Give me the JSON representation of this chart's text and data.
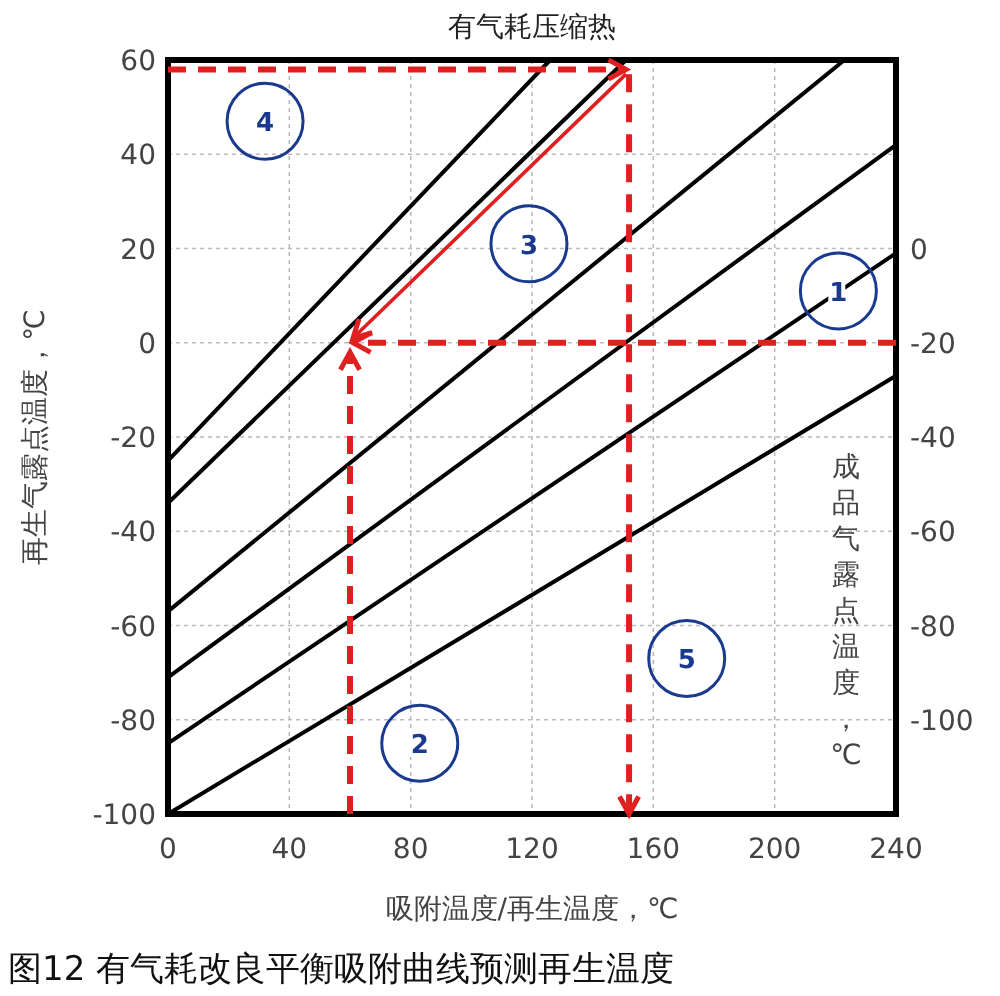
{
  "chart_data": {
    "type": "line",
    "title": "有气耗压缩热",
    "xlabel": "吸附温度/再生温度，℃",
    "ylabel": "再生气露点温度，℃",
    "y2label": "成品气露点温度，℃",
    "xlim": [
      0,
      240
    ],
    "xticks": [
      0,
      40,
      80,
      120,
      160,
      200,
      240
    ],
    "ylim": [
      -100,
      60
    ],
    "yticks": [
      -100,
      -80,
      -60,
      -40,
      -20,
      0,
      20,
      40,
      60
    ],
    "y2lim": [
      -120,
      40
    ],
    "y2ticks": [
      0,
      -20,
      -40,
      -60,
      -80,
      -100
    ],
    "grid": true,
    "marker": "none",
    "ref_lines": [
      {
        "axis": "y",
        "value": 0,
        "color": "#e02020",
        "line_style": "dashed"
      },
      {
        "axis": "x",
        "value": 60,
        "color": "#e02020",
        "line_style": "dashed"
      },
      {
        "axis": "y",
        "value": 58,
        "color": "#e02020",
        "line_style": "dashed"
      },
      {
        "axis": "x",
        "value": 152,
        "color": "#e02020",
        "line_style": "dashed"
      }
    ],
    "series": [
      {
        "color": "#000000",
        "x": [
          0,
          126
        ],
        "values": [
          -25,
          60
        ]
      },
      {
        "color": "#000000",
        "x": [
          0,
          151
        ],
        "values": [
          -34,
          60
        ]
      },
      {
        "color": "#000000",
        "x": [
          0,
          223
        ],
        "values": [
          -57,
          60
        ]
      },
      {
        "color": "#000000",
        "x": [
          0,
          240
        ],
        "values": [
          -71,
          42
        ]
      },
      {
        "color": "#000000",
        "x": [
          0,
          240
        ],
        "values": [
          -85,
          19
        ]
      },
      {
        "color": "#000000",
        "x": [
          0,
          240
        ],
        "values": [
          -100,
          -7
        ]
      }
    ],
    "annotations": [
      {
        "text": "1",
        "x": 221,
        "y": 11
      },
      {
        "text": "2",
        "x": 83,
        "y": -85
      },
      {
        "text": "3",
        "x": 119,
        "y": 21
      },
      {
        "text": "4",
        "x": 32,
        "y": 47
      },
      {
        "text": "5",
        "x": 171,
        "y": -67
      },
      "图12 有气耗改良平衡吸附曲线预测再生温度"
    ]
  }
}
